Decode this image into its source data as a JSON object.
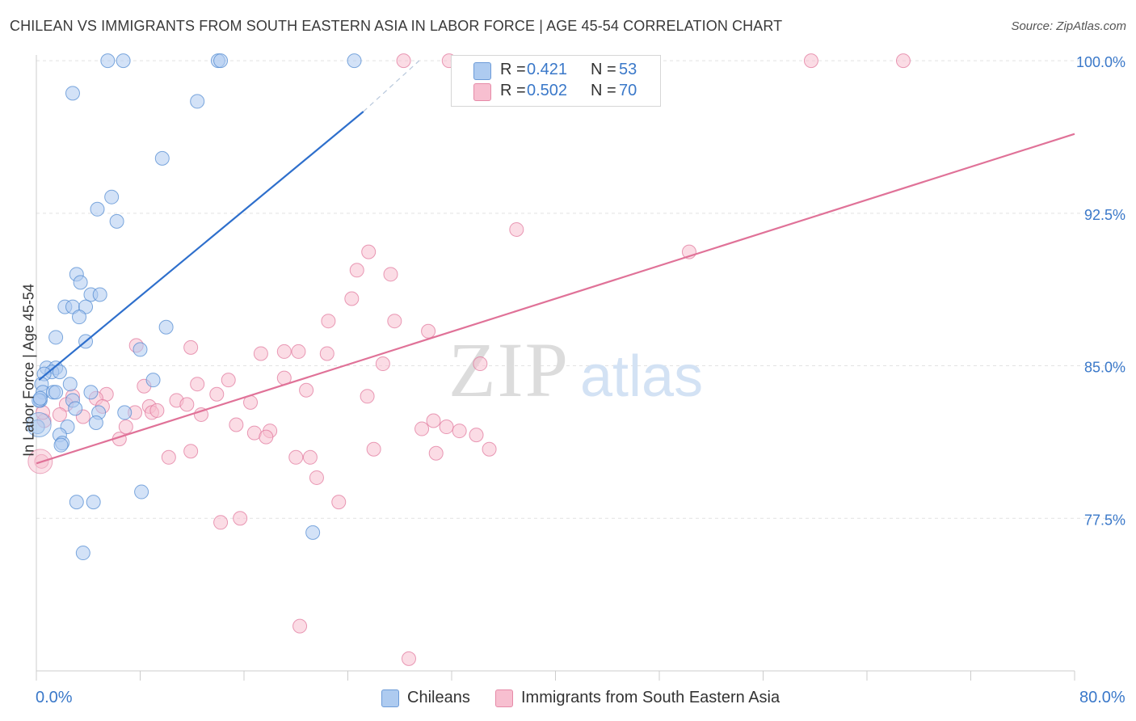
{
  "title": "CHILEAN VS IMMIGRANTS FROM SOUTH EASTERN ASIA IN LABOR FORCE | AGE 45-54 CORRELATION CHART",
  "source": "Source: ZipAtlas.com",
  "watermark": {
    "zip": "ZIP",
    "atlas": "atlas"
  },
  "legend": {
    "r_label": "R =",
    "n_label": "N =",
    "series": [
      {
        "name": "Chileans",
        "r": "0.421",
        "n": "53",
        "fill": "#aecbf0",
        "stroke": "#6c9bd8"
      },
      {
        "name": "Immigrants from South Eastern Asia",
        "r": "0.502",
        "n": "70",
        "fill": "#f7bfd0",
        "stroke": "#e68aa8"
      }
    ]
  },
  "axis": {
    "x_min_label": "0.0%",
    "x_max_label": "80.0%",
    "y_label": "In Labor Force | Age 45-54"
  },
  "chart_data": {
    "type": "scatter",
    "title": "CHILEAN VS IMMIGRANTS FROM SOUTH EASTERN ASIA IN LABOR FORCE | AGE 45-54 CORRELATION CHART",
    "xlabel": "",
    "ylabel": "In Labor Force | Age 45-54",
    "xlim": [
      0,
      80
    ],
    "ylim": [
      70.0,
      100.6
    ],
    "y_ticks": [
      77.5,
      85.0,
      92.5,
      100.0
    ],
    "y_tick_labels": [
      "77.5%",
      "85.0%",
      "92.5%",
      "100.0%"
    ],
    "x_tick_labels": [
      "0.0%",
      "80.0%"
    ],
    "grid": true,
    "series": [
      {
        "name": "Chileans",
        "color": "#4a86d0",
        "fill": "#aecbf0",
        "trend": {
          "x": [
            0.2,
            25.2
          ],
          "y": [
            84.3,
            97.5
          ],
          "dashed_to": [
            29.5,
            100.0
          ],
          "color": "#2e6fcc"
        },
        "points": [
          [
            5.5,
            100.0
          ],
          [
            6.7,
            100.0
          ],
          [
            14.0,
            100.0
          ],
          [
            14.2,
            100.0
          ],
          [
            24.5,
            100.0
          ],
          [
            2.8,
            98.4
          ],
          [
            12.4,
            98.0
          ],
          [
            9.7,
            95.2
          ],
          [
            5.8,
            93.3
          ],
          [
            4.7,
            92.7
          ],
          [
            6.2,
            92.1
          ],
          [
            3.1,
            89.5
          ],
          [
            3.4,
            89.1
          ],
          [
            4.2,
            88.5
          ],
          [
            4.9,
            88.5
          ],
          [
            2.2,
            87.9
          ],
          [
            2.8,
            87.9
          ],
          [
            3.8,
            87.9
          ],
          [
            3.3,
            87.4
          ],
          [
            10.0,
            86.9
          ],
          [
            1.5,
            86.4
          ],
          [
            3.8,
            86.2
          ],
          [
            8.0,
            85.8
          ],
          [
            0.8,
            84.9
          ],
          [
            1.5,
            84.9
          ],
          [
            1.2,
            84.7
          ],
          [
            0.6,
            84.6
          ],
          [
            1.8,
            84.7
          ],
          [
            9.0,
            84.3
          ],
          [
            0.4,
            84.1
          ],
          [
            2.6,
            84.1
          ],
          [
            0.5,
            83.7
          ],
          [
            1.3,
            83.7
          ],
          [
            1.5,
            83.7
          ],
          [
            4.2,
            83.7
          ],
          [
            0.3,
            83.3
          ],
          [
            0.2,
            83.3
          ],
          [
            2.8,
            83.3
          ],
          [
            3.0,
            82.9
          ],
          [
            4.8,
            82.7
          ],
          [
            6.8,
            82.7
          ],
          [
            4.6,
            82.2
          ],
          [
            2.4,
            82.0
          ],
          [
            1.8,
            81.6
          ],
          [
            2.0,
            81.2
          ],
          [
            1.9,
            81.1
          ],
          [
            8.1,
            78.8
          ],
          [
            3.1,
            78.3
          ],
          [
            4.4,
            78.3
          ],
          [
            21.3,
            76.8
          ],
          [
            3.6,
            75.8
          ],
          [
            0.1,
            82.0
          ],
          [
            0.3,
            83.4
          ]
        ],
        "big_point": [
          0.2,
          82.1
        ]
      },
      {
        "name": "Immigrants from South Eastern Asia",
        "color": "#e07298",
        "fill": "#f7bfd0",
        "trend": {
          "x": [
            0.0,
            80.0
          ],
          "y": [
            80.2,
            96.4
          ],
          "color": "#e07298"
        },
        "points": [
          [
            28.3,
            100.0
          ],
          [
            31.8,
            100.0
          ],
          [
            59.7,
            100.0
          ],
          [
            66.8,
            100.0
          ],
          [
            37.0,
            91.7
          ],
          [
            50.3,
            90.6
          ],
          [
            25.6,
            90.6
          ],
          [
            27.3,
            89.5
          ],
          [
            24.7,
            89.7
          ],
          [
            24.3,
            88.3
          ],
          [
            22.5,
            87.2
          ],
          [
            27.6,
            87.2
          ],
          [
            30.2,
            86.7
          ],
          [
            11.9,
            85.9
          ],
          [
            7.7,
            86.0
          ],
          [
            17.3,
            85.6
          ],
          [
            19.1,
            85.7
          ],
          [
            20.2,
            85.7
          ],
          [
            22.4,
            85.6
          ],
          [
            26.7,
            85.1
          ],
          [
            34.2,
            85.1
          ],
          [
            14.8,
            84.3
          ],
          [
            19.1,
            84.4
          ],
          [
            12.4,
            84.1
          ],
          [
            8.3,
            84.0
          ],
          [
            20.8,
            83.8
          ],
          [
            13.9,
            83.6
          ],
          [
            5.4,
            83.6
          ],
          [
            2.8,
            83.5
          ],
          [
            4.6,
            83.4
          ],
          [
            10.8,
            83.3
          ],
          [
            11.6,
            83.1
          ],
          [
            8.7,
            83.0
          ],
          [
            25.5,
            83.5
          ],
          [
            2.3,
            83.1
          ],
          [
            16.5,
            83.2
          ],
          [
            5.1,
            83.0
          ],
          [
            8.9,
            82.7
          ],
          [
            7.6,
            82.7
          ],
          [
            9.3,
            82.8
          ],
          [
            12.7,
            82.6
          ],
          [
            1.8,
            82.6
          ],
          [
            3.6,
            82.5
          ],
          [
            30.6,
            82.3
          ],
          [
            15.4,
            82.1
          ],
          [
            6.9,
            82.0
          ],
          [
            31.6,
            82.0
          ],
          [
            18.0,
            81.8
          ],
          [
            29.7,
            81.9
          ],
          [
            32.6,
            81.8
          ],
          [
            33.9,
            81.6
          ],
          [
            16.8,
            81.7
          ],
          [
            17.7,
            81.5
          ],
          [
            6.4,
            81.4
          ],
          [
            34.9,
            80.9
          ],
          [
            26.0,
            80.9
          ],
          [
            11.9,
            80.8
          ],
          [
            20.0,
            80.5
          ],
          [
            21.1,
            80.5
          ],
          [
            10.2,
            80.5
          ],
          [
            30.8,
            80.7
          ],
          [
            21.6,
            79.5
          ],
          [
            23.3,
            78.3
          ],
          [
            15.7,
            77.5
          ],
          [
            14.2,
            77.3
          ],
          [
            20.3,
            72.2
          ],
          [
            28.7,
            70.6
          ],
          [
            0.6,
            82.3
          ],
          [
            0.5,
            82.7
          ],
          [
            0.4,
            80.3
          ]
        ],
        "big_point": [
          0.3,
          80.3
        ]
      }
    ]
  }
}
